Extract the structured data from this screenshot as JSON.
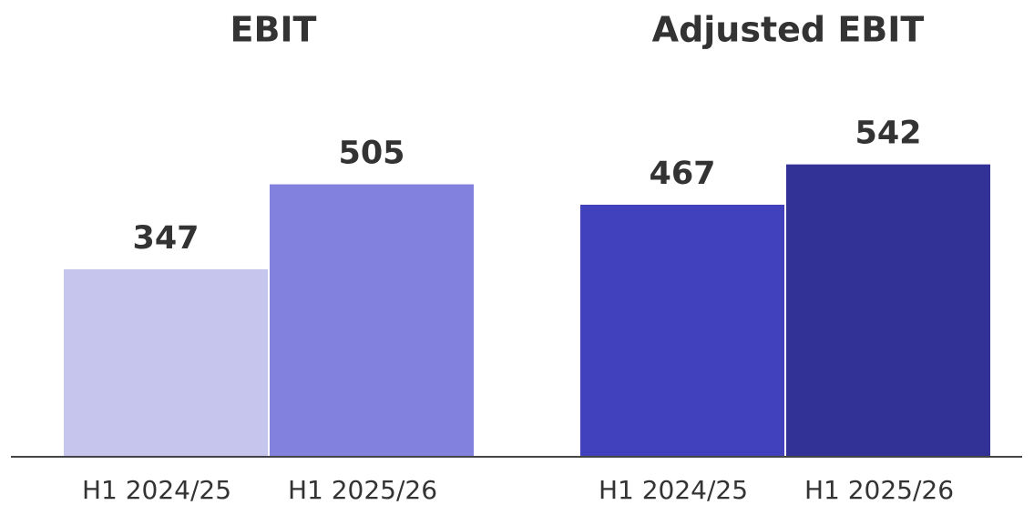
{
  "chart_data": [
    {
      "type": "bar",
      "title": "EBIT",
      "categories": [
        "H1 2024/25",
        "H1 2025/26"
      ],
      "values": [
        347,
        505
      ],
      "colors": [
        "#c5c5ee",
        "#8282de"
      ]
    },
    {
      "type": "bar",
      "title": "Adjusted EBIT",
      "categories": [
        "H1 2024/25",
        "H1 2025/26"
      ],
      "values": [
        467,
        542
      ],
      "colors": [
        "#4141bd",
        "#323296"
      ]
    }
  ]
}
